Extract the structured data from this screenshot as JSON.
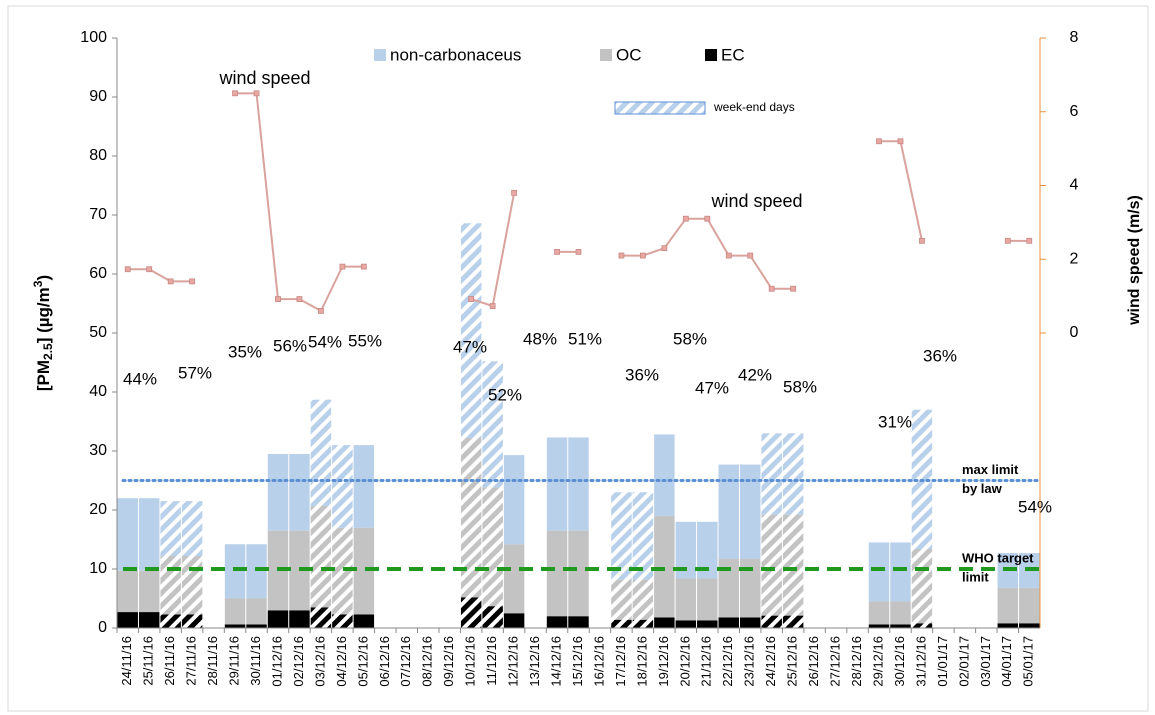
{
  "chart_data": {
    "type": "bar",
    "stacked": true,
    "categories": [
      "24/11/16",
      "25/11/16",
      "26/11/16",
      "27/11/16",
      "28/11/16",
      "29/11/16",
      "30/11/16",
      "01/12/16",
      "02/12/16",
      "03/12/16",
      "04/12/16",
      "05/12/16",
      "06/12/16",
      "07/12/16",
      "08/12/16",
      "09/12/16",
      "10/12/16",
      "11/12/16",
      "12/12/16",
      "13/12/16",
      "14/12/16",
      "15/12/16",
      "16/12/16",
      "17/12/16",
      "18/12/16",
      "19/12/16",
      "20/12/16",
      "21/12/16",
      "22/12/16",
      "23/12/16",
      "24/12/16",
      "25/12/16",
      "26/12/16",
      "27/12/16",
      "28/12/16",
      "29/12/16",
      "30/12/16",
      "31/12/16",
      "01/01/17",
      "02/01/17",
      "03/01/17",
      "04/01/17",
      "05/01/17"
    ],
    "weekend": [
      false,
      false,
      true,
      true,
      false,
      false,
      false,
      false,
      false,
      true,
      true,
      false,
      false,
      false,
      false,
      false,
      true,
      true,
      false,
      false,
      false,
      false,
      false,
      true,
      true,
      false,
      false,
      false,
      false,
      false,
      true,
      true,
      false,
      false,
      false,
      false,
      false,
      true,
      false,
      false,
      false,
      false,
      false
    ],
    "series": [
      {
        "name": "EC",
        "color": "#000000",
        "values": [
          2.7,
          2.7,
          2.3,
          2.3,
          null,
          0.6,
          0.6,
          3.0,
          3.0,
          3.5,
          2.3,
          2.3,
          null,
          null,
          null,
          null,
          5.2,
          3.7,
          2.5,
          null,
          2.0,
          2.0,
          null,
          1.4,
          1.4,
          1.8,
          1.3,
          1.3,
          1.8,
          1.8,
          2.1,
          2.1,
          null,
          null,
          null,
          0.6,
          0.6,
          0.8,
          null,
          null,
          null,
          0.8,
          0.8
        ]
      },
      {
        "name": "OC",
        "color": "#c3c3c3",
        "values": [
          7.0,
          7.0,
          9.9,
          9.9,
          null,
          4.4,
          4.4,
          13.5,
          13.5,
          17.2,
          14.7,
          14.7,
          null,
          null,
          null,
          null,
          27.0,
          20.1,
          11.7,
          null,
          14.5,
          14.5,
          null,
          6.8,
          6.8,
          17.2,
          7.1,
          7.1,
          9.9,
          9.9,
          17.1,
          17.1,
          null,
          null,
          null,
          3.9,
          3.9,
          12.6,
          null,
          null,
          null,
          6.0,
          6.0
        ]
      },
      {
        "name": "non-carbonaceus",
        "color": "#b8d0ea",
        "values": [
          12.3,
          12.3,
          9.3,
          9.3,
          null,
          9.2,
          9.2,
          13.0,
          13.0,
          18.0,
          14.0,
          14.0,
          null,
          null,
          null,
          null,
          36.4,
          21.4,
          15.1,
          null,
          15.8,
          15.8,
          null,
          14.8,
          14.8,
          13.8,
          9.6,
          9.6,
          16.0,
          16.0,
          13.8,
          13.8,
          null,
          null,
          null,
          10.0,
          10.0,
          23.6,
          null,
          null,
          null,
          5.9,
          5.9
        ]
      },
      {
        "name": "wind speed",
        "type": "line",
        "axis": "y2",
        "color": "#d9a29c",
        "values": [
          1.73,
          1.73,
          1.4,
          1.4,
          null,
          6.5,
          6.5,
          0.92,
          0.92,
          0.6,
          1.8,
          1.8,
          null,
          null,
          null,
          null,
          0.92,
          0.73,
          3.8,
          null,
          2.2,
          2.2,
          null,
          2.1,
          2.1,
          2.3,
          3.1,
          3.1,
          2.1,
          2.1,
          1.2,
          1.2,
          null,
          null,
          null,
          5.2,
          5.2,
          2.5,
          null,
          null,
          null,
          2.5,
          2.5
        ]
      }
    ],
    "weekend_label": "week-end days",
    "percent_labels": [
      "44%",
      "57%",
      "35%",
      "56%",
      "54%",
      "55%",
      "47%",
      "52%",
      "48%",
      "51%",
      "36%",
      "58%",
      "47%",
      "42%",
      "58%",
      "31%",
      "36%",
      "54%"
    ],
    "reference_lines": [
      {
        "value": 25,
        "label_lines": [
          "max limit",
          "by law"
        ],
        "color": "#5a8fd4",
        "style": "dotted"
      },
      {
        "value": 10,
        "label_lines": [
          "WHO target",
          "limit"
        ],
        "color": "#1f9a1f",
        "style": "dashed"
      }
    ],
    "y_label_parts": [
      "[PM",
      "2.5",
      "] (µg/m",
      "3",
      ")"
    ],
    "y2_label": "wind speed (m/s)",
    "ylim": [
      0,
      100
    ],
    "yticks": [
      0,
      10,
      20,
      30,
      40,
      50,
      60,
      70,
      80,
      90,
      100
    ],
    "y2lim": [
      -8,
      8
    ],
    "y2ticks": [
      0,
      2,
      4,
      6,
      8
    ],
    "y2_color": "#e69138",
    "grid": false
  }
}
